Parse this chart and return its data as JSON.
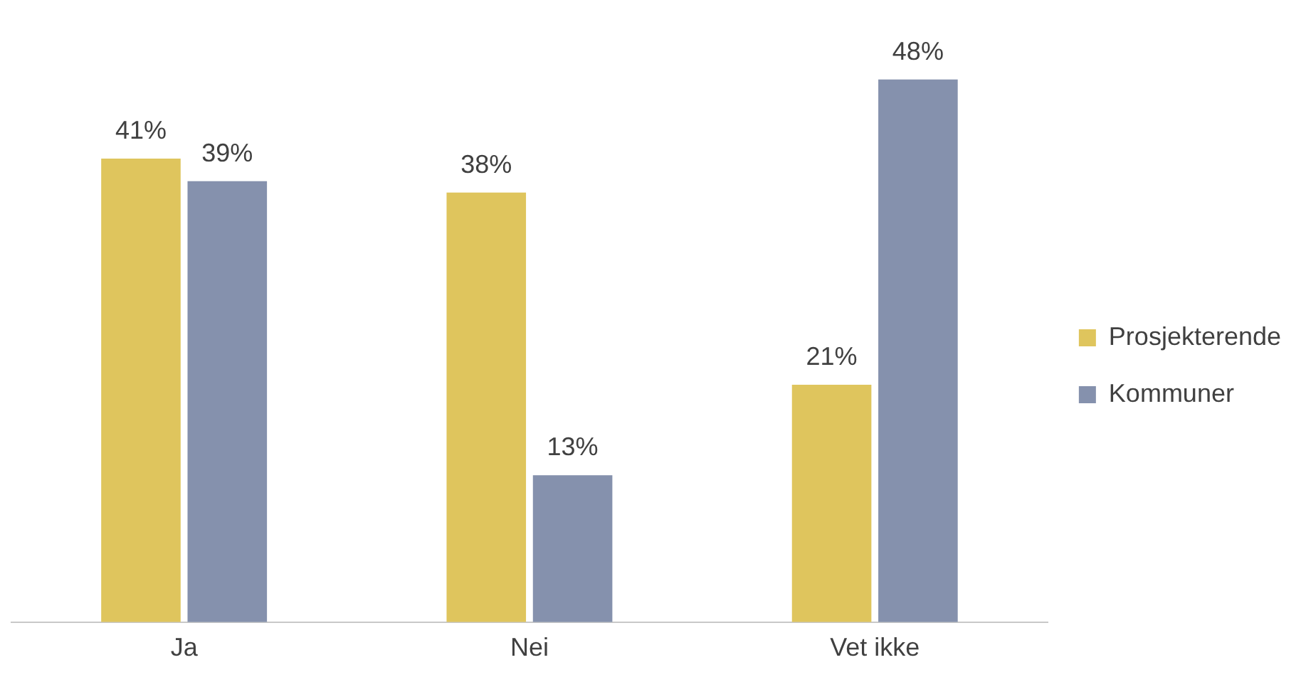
{
  "chart_data": {
    "type": "bar",
    "categories": [
      "Ja",
      "Nei",
      "Vet ikke"
    ],
    "series": [
      {
        "name": "Prosjekterende",
        "color": "#dfc55d",
        "values": [
          41,
          38,
          21
        ],
        "value_labels": [
          "41%",
          "38%",
          "21%"
        ]
      },
      {
        "name": "Kommuner",
        "color": "#8591ad",
        "values": [
          39,
          13,
          48
        ],
        "value_labels": [
          "39%",
          "13%",
          "48%"
        ]
      }
    ],
    "grid": false,
    "legend": "right"
  }
}
